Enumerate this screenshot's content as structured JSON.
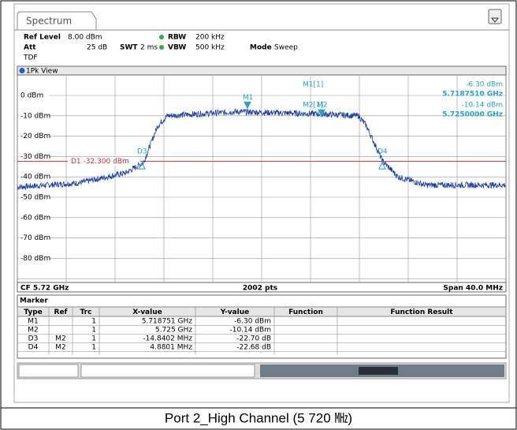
{
  "tab": "Spectrum",
  "header": {
    "ref_level_label": "Ref Level",
    "ref_level": "8.00 dBm",
    "att_label": "Att",
    "att": "25 dB",
    "swt_label": "SWT",
    "swt": "2 ms",
    "rbw_label": "RBW",
    "rbw": "200 kHz",
    "vbw_label": "VBW",
    "vbw": "500 kHz",
    "mode_label": "Mode",
    "mode": "Sweep",
    "tdf": "TDF"
  },
  "view": "1Pk View",
  "y_labels": [
    "0 dBm",
    "-10 dBm",
    "-20 dBm",
    "-30 dBm",
    "-40 dBm",
    "-50 dBm",
    "-60 dBm",
    "-70 dBm",
    "-80 dBm"
  ],
  "readout": [
    {
      "name": "M1[1]",
      "level": "-6.30 dBm",
      "freq": "5.7187510 GHz"
    },
    {
      "name": "M2[1]",
      "level": "-10.14 dBm",
      "freq": "5.7250000 GHz"
    }
  ],
  "plot_markers": [
    "M1",
    "M2",
    "D3",
    "D4"
  ],
  "d1_line": "D1 -32.300 dBm",
  "footer": {
    "cf": "CF 5.72 GHz",
    "pts": "2002 pts",
    "span": "Span 40.0 MHz"
  },
  "table": {
    "title": "Marker",
    "columns": [
      "Type",
      "Ref",
      "Trc",
      "X-value",
      "Y-value",
      "Function",
      "Function Result"
    ],
    "rows": [
      {
        "type": "M1",
        "trc": "1",
        "x": "5.718751 GHz",
        "y": "-6.30 dBm"
      },
      {
        "type": "M2",
        "trc": "1",
        "x": "5.725 GHz",
        "y": "-10.14 dBm"
      },
      {
        "type": "D3",
        "ref": "M2",
        "trc": "1",
        "x": "-14.8402 MHz",
        "y": "-22.70 dB"
      },
      {
        "type": "D4",
        "ref": "M2",
        "trc": "1",
        "x": "4.8801 MHz",
        "y": "-22.68 dB"
      }
    ]
  },
  "caption": "Port 2_High Channel (5 720 ㎒)"
}
